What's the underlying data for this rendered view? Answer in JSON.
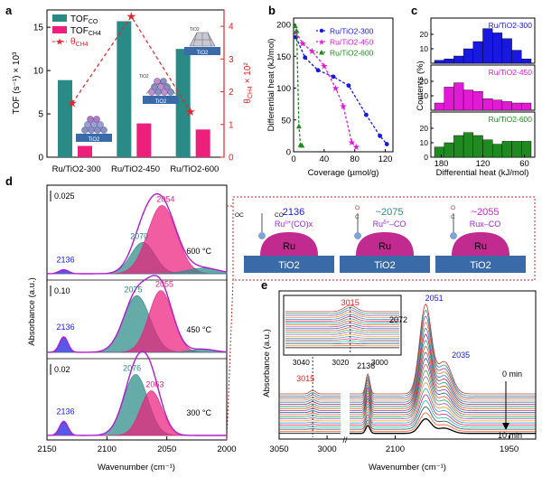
{
  "panel_letters": [
    "a",
    "b",
    "c",
    "d",
    "e"
  ],
  "colors": {
    "teal": "#2a8a85",
    "magenta": "#ec1f7b",
    "red": "#e4242c",
    "blue": "#1818e0",
    "pink": "#e21ad6",
    "green": "#1f8a1f",
    "steel": "#3b6aa8",
    "ru_pink": "#c12a8f",
    "ads_purple": "#9a2ad6"
  },
  "chart_data": [
    {
      "panel": "a",
      "type": "bar",
      "categories": [
        "Ru/TiO2-300",
        "Ru/TiO2-450",
        "Ru/TiO2-600"
      ],
      "ylabel_left": "TOF (s⁻¹) × 10³",
      "ylim_left": [
        0,
        17
      ],
      "yticks_left": [
        "0",
        "5",
        "10",
        "15"
      ],
      "ylabel_right": "θCH4 × 10²",
      "ylim_right": [
        0,
        4.5
      ],
      "yticks_right": [
        "0",
        "1",
        "2",
        "3",
        "4"
      ],
      "series": [
        {
          "name": "TOFCO",
          "axis": "left",
          "color": "#2a8a85",
          "values": [
            8.9,
            15.7,
            12.5
          ]
        },
        {
          "name": "TOFCH4",
          "axis": "left",
          "color": "#ec1f7b",
          "values": [
            1.3,
            3.9,
            3.2
          ]
        },
        {
          "name": "θCH4",
          "axis": "right",
          "color": "#e4242c",
          "style": "dashed-line-star",
          "values": [
            1.65,
            4.3,
            1.4
          ]
        }
      ],
      "legend": {
        "tofco_main": "TOF",
        "tofco_sub": "CO",
        "tofch4_main": "TOF",
        "tofch4_sub": "CH4",
        "theta_main": "θ",
        "theta_sub": "CH4"
      },
      "right_axis_label_main": "θ",
      "right_axis_label_sub": "CH4",
      "right_axis_label_tail": " × 10²",
      "inset_label": "TiO2",
      "inset_top_label": "TiO2"
    },
    {
      "panel": "b",
      "type": "line",
      "xlabel": "Coverage (µmol/g)",
      "ylabel": "Differential heat (kJ/mol)",
      "xlim": [
        0,
        130
      ],
      "ylim": [
        0,
        210
      ],
      "xticks": [
        "0",
        "40",
        "80",
        "120"
      ],
      "yticks": [
        "0",
        "50",
        "100",
        "150",
        "200"
      ],
      "legend": "top-right",
      "series": [
        {
          "name": "Ru/TiO2-300",
          "color": "#1818e0",
          "marker": "circle",
          "x": [
            3,
            15,
            32,
            52,
            72,
            95,
            113,
            122
          ],
          "y": [
            180,
            148,
            128,
            118,
            104,
            58,
            25,
            12
          ]
        },
        {
          "name": "Ru/TiO2-450",
          "color": "#e21ad6",
          "marker": "star",
          "x": [
            3,
            12,
            24,
            40,
            55,
            65,
            76,
            82
          ],
          "y": [
            188,
            170,
            158,
            135,
            100,
            72,
            15,
            8
          ]
        },
        {
          "name": "Ru/TiO2-600",
          "color": "#1f8a1f",
          "marker": "triangle",
          "x": [
            2,
            4,
            7,
            9,
            11
          ],
          "y": [
            198,
            190,
            40,
            11,
            10
          ]
        }
      ]
    },
    {
      "panel": "c",
      "type": "bar",
      "xlabel": "Differential heat (kJ/mol)",
      "ylabel": "Contents (%)",
      "xlim": [
        195,
        45
      ],
      "xticks": [
        "180",
        "120",
        "60"
      ],
      "subplots": [
        {
          "name": "Ru/TiO2-300",
          "color": "#1818e0",
          "values": [
            2,
            3,
            5,
            10,
            15,
            24,
            21,
            17,
            9,
            3
          ]
        },
        {
          "name": "Ru/TiO2-450",
          "color": "#e21ad6",
          "values": [
            5,
            16,
            19,
            14,
            13,
            8,
            7,
            6,
            5,
            5
          ]
        },
        {
          "name": "Ru/TiO2-600",
          "color": "#1f8a1f",
          "values": [
            7,
            10,
            15,
            17,
            15,
            12,
            9,
            11,
            11,
            11
          ]
        }
      ],
      "ylim": [
        0,
        30
      ],
      "yticks": [
        "20",
        "10",
        "0"
      ]
    },
    {
      "panel": "d",
      "type": "line",
      "xlabel": "Wavenumber (cm⁻¹)",
      "ylabel": "Absorbance (a.u.)",
      "xlim": [
        2150,
        2000
      ],
      "xticks": [
        "2150",
        "2100",
        "2050",
        "2000"
      ],
      "spectra": [
        {
          "condition": "600 °C",
          "scale": "0.025",
          "peaks": [
            {
              "center": 2136,
              "height": 0.07,
              "width": 4,
              "color": "#1818e0"
            },
            {
              "center": 2070,
              "height": 0.55,
              "width": 10,
              "color": "#2a8a85"
            },
            {
              "center": 2054,
              "height": 1.2,
              "width": 12,
              "color": "#ec1f7b"
            },
            {
              "center": 2020,
              "height": 0.1,
              "width": 13,
              "color": "#2a8a85"
            }
          ],
          "labels": [
            {
              "text": "2136",
              "color": "#1818e0"
            },
            {
              "text": "2070",
              "color": "#2a8a85"
            },
            {
              "text": "2054",
              "color": "#ec1f7b"
            }
          ]
        },
        {
          "condition": "450 °C",
          "scale": "0.10",
          "peaks": [
            {
              "center": 2136,
              "height": 0.3,
              "width": 3.5,
              "color": "#1818e0"
            },
            {
              "center": 2075,
              "height": 1.1,
              "width": 11,
              "color": "#2a8a85"
            },
            {
              "center": 2055,
              "height": 1.2,
              "width": 10,
              "color": "#ec1f7b"
            },
            {
              "center": 2020,
              "height": 0.06,
              "width": 10,
              "color": "#2a8a85"
            }
          ],
          "labels": [
            {
              "text": "2136",
              "color": "#1818e0"
            },
            {
              "text": "2075",
              "color": "#2a8a85"
            },
            {
              "text": "2055",
              "color": "#ec1f7b"
            }
          ]
        },
        {
          "condition": "300 °C",
          "scale": "0.02",
          "peaks": [
            {
              "center": 2136,
              "height": 0.3,
              "width": 3.5,
              "color": "#1818e0"
            },
            {
              "center": 2076,
              "height": 1.3,
              "width": 10,
              "color": "#2a8a85"
            },
            {
              "center": 2063,
              "height": 0.95,
              "width": 9,
              "color": "#ec1f7b"
            }
          ],
          "labels": [
            {
              "text": "2136",
              "color": "#1818e0"
            },
            {
              "text": "2076",
              "color": "#2a8a85"
            },
            {
              "text": "2063",
              "color": "#ec1f7b"
            }
          ]
        }
      ],
      "schematic": [
        {
          "wavenumber": "2136",
          "species_main": "Ru",
          "species_sup": "n+",
          "species_tail": "(CO)x",
          "particle": "Ru",
          "support": "TiO2"
        },
        {
          "wavenumber": "~2075",
          "species_main": "Ru",
          "species_sup": "δ+",
          "species_tail": "–CO",
          "particle": "Ru",
          "support": "TiO2"
        },
        {
          "wavenumber": "~2055",
          "species_main": "Rux",
          "species_sup": "",
          "species_tail": "–CO",
          "particle": "Ru",
          "support": "TiO2"
        }
      ],
      "schematic_ligand_labels": [
        "OC",
        "CO",
        "O",
        "C"
      ]
    },
    {
      "panel": "e",
      "type": "line",
      "xlabel": "Wavenumber (cm⁻¹)",
      "ylabel": "Absorbance (a.u.)",
      "xticks": [
        "3050",
        "3000",
        "2100",
        "1950"
      ],
      "peak_labels": [
        {
          "text": "3015",
          "color": "#e4242c"
        },
        {
          "text": "2136",
          "color": "#000000"
        },
        {
          "text": "2072",
          "color": "#000000"
        },
        {
          "text": "2051",
          "color": "#1818e0"
        },
        {
          "text": "2035",
          "color": "#1818e0"
        }
      ],
      "time_start": "0 min",
      "time_end": "10 min",
      "inset": {
        "peak_label": "3015",
        "xticks": [
          "3040",
          "3020",
          "3000"
        ]
      },
      "n_curves": 20
    }
  ]
}
